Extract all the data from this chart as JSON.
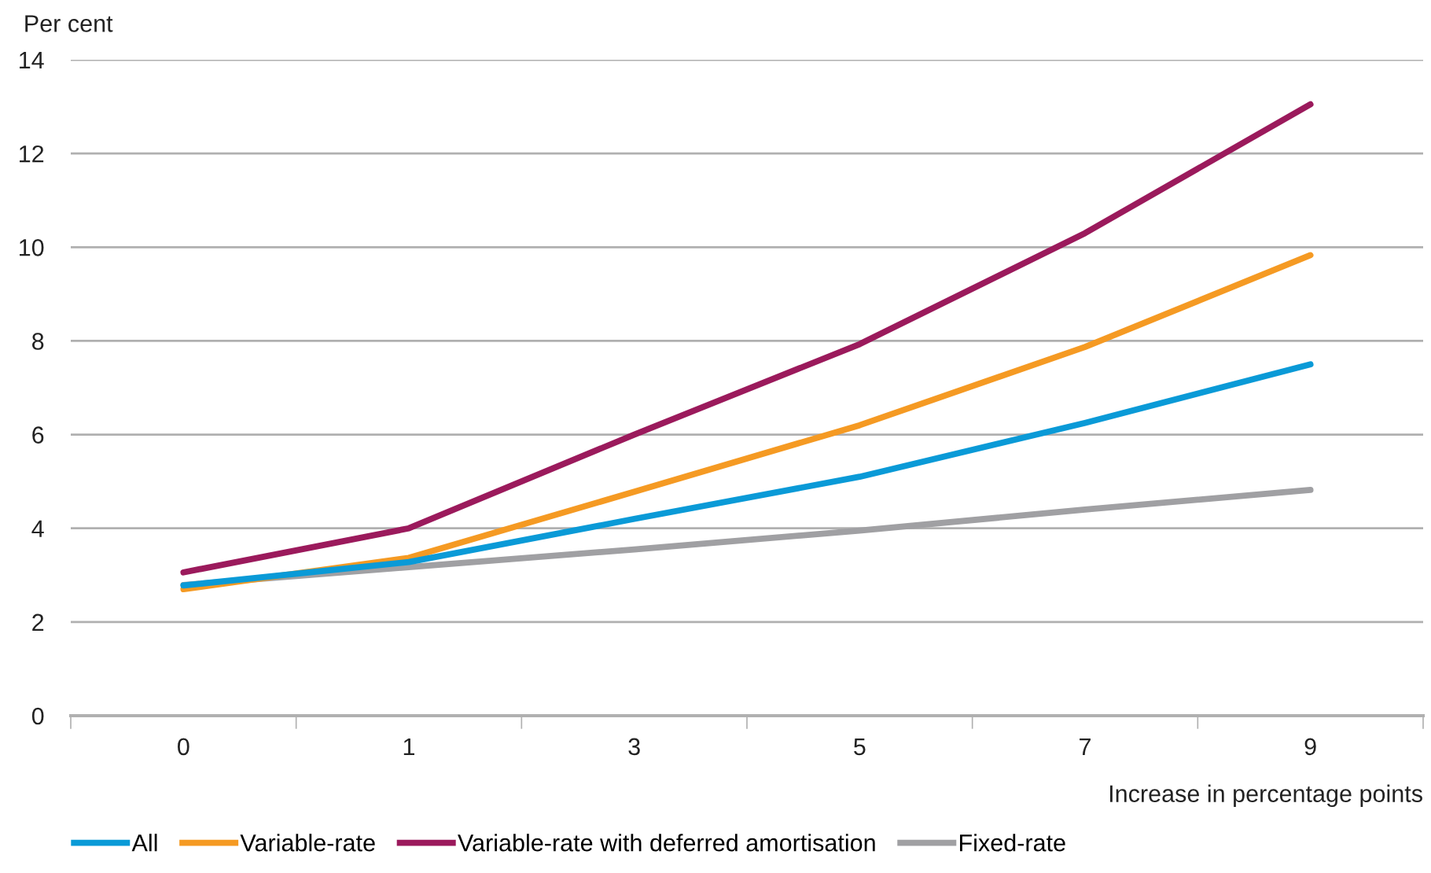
{
  "chart_data": {
    "type": "line",
    "ylabel": "Per cent",
    "xlabel": "Increase in percentage points",
    "categories": [
      "0",
      "1",
      "3",
      "5",
      "7",
      "9"
    ],
    "series": [
      {
        "name": "All",
        "color": "#0a9ad7",
        "values": [
          2.78,
          3.28,
          4.2,
          5.1,
          6.25,
          7.5
        ]
      },
      {
        "name": "Variable-rate",
        "color": "#f59a23",
        "values": [
          2.7,
          3.37,
          4.78,
          6.2,
          7.87,
          9.83
        ]
      },
      {
        "name": "Variable-rate with deferred amortisation",
        "color": "#9b1a5c",
        "values": [
          3.06,
          4.0,
          6.0,
          7.93,
          10.3,
          13.05
        ]
      },
      {
        "name": "Fixed-rate",
        "color": "#a0a0a3",
        "values": [
          2.79,
          3.17,
          3.55,
          3.95,
          4.4,
          4.82
        ]
      }
    ],
    "ylim": [
      0,
      14
    ],
    "yticks": [
      0,
      2,
      4,
      6,
      8,
      10,
      12,
      14
    ],
    "grid": "y",
    "legend": "bottom",
    "marker": "none",
    "line_style": "solid"
  }
}
